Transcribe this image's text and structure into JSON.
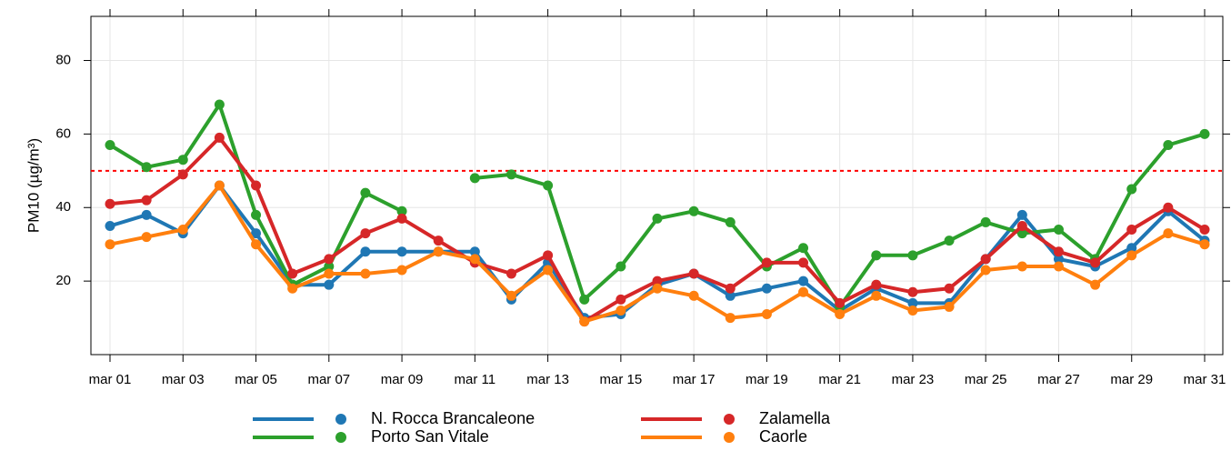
{
  "chart_data": {
    "type": "line",
    "y_label": "PM10 (µg/m³)",
    "categories": [
      "mar 01",
      null,
      "mar 03",
      null,
      "mar 05",
      null,
      "mar 07",
      null,
      "mar 09",
      null,
      "mar 11",
      null,
      "mar 13",
      null,
      "mar 15",
      null,
      "mar 17",
      null,
      "mar 19",
      null,
      "mar 21",
      null,
      "mar 23",
      null,
      "mar 25",
      null,
      "mar 27",
      null,
      "mar 29",
      null,
      "mar 31"
    ],
    "ylim": [
      0,
      92
    ],
    "yticks": [
      20,
      40,
      60,
      80
    ],
    "grid": true,
    "threshold": {
      "value": 50,
      "color": "#ff0000"
    },
    "series": [
      {
        "name": "N. Rocca Brancaleone",
        "color": "#1f77b4",
        "values": [
          35,
          38,
          33,
          46,
          33,
          19,
          19,
          28,
          28,
          28,
          28,
          15,
          25,
          10,
          11,
          19,
          22,
          16,
          18,
          20,
          12,
          18,
          14,
          14,
          26,
          38,
          26,
          24,
          29,
          39,
          31
        ]
      },
      {
        "name": "Porto San Vitale",
        "color": "#2ca02c",
        "values": [
          57,
          51,
          53,
          68,
          38,
          19,
          24,
          44,
          39,
          null,
          48,
          49,
          46,
          15,
          24,
          37,
          39,
          36,
          24,
          29,
          13,
          27,
          27,
          31,
          36,
          33,
          34,
          26,
          45,
          57,
          60
        ]
      },
      {
        "name": "Zalamella",
        "color": "#d62728",
        "values": [
          41,
          42,
          49,
          59,
          46,
          22,
          26,
          33,
          37,
          31,
          25,
          22,
          27,
          9,
          15,
          20,
          22,
          18,
          25,
          25,
          14,
          19,
          17,
          18,
          26,
          35,
          28,
          25,
          34,
          40,
          34
        ]
      },
      {
        "name": "Caorle",
        "color": "#ff7f0e",
        "values": [
          30,
          32,
          34,
          46,
          30,
          18,
          22,
          22,
          23,
          28,
          26,
          16,
          23,
          9,
          12,
          18,
          16,
          10,
          11,
          17,
          11,
          16,
          12,
          13,
          23,
          24,
          24,
          19,
          27,
          33,
          30
        ]
      }
    ],
    "legend": "bottom"
  }
}
